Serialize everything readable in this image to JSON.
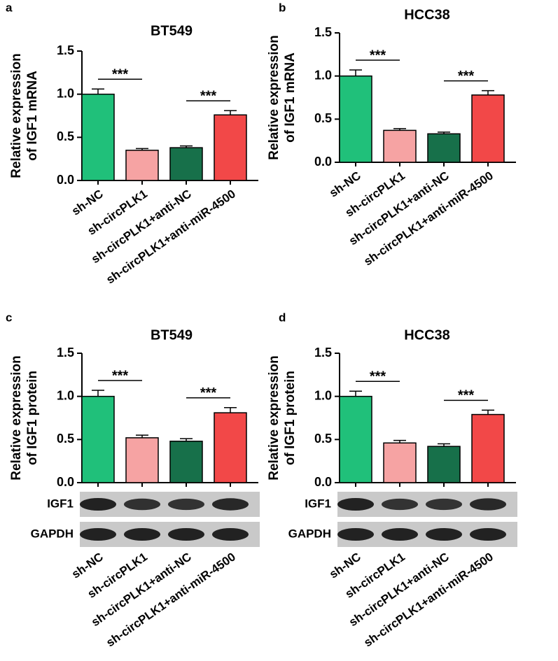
{
  "chart_data": [
    {
      "type": "bar",
      "panel": "a",
      "title": "BT549",
      "ylabel": [
        "Relative expression",
        "of IGF1 mRNA"
      ],
      "categories": [
        "sh-NC",
        "sh-circPLK1",
        "sh-circPLK1+anti-NC",
        "sh-circPLK1+anti-miR-4500"
      ],
      "values": [
        1.0,
        0.35,
        0.38,
        0.76
      ],
      "errors": [
        0.06,
        0.02,
        0.02,
        0.05
      ],
      "colors": [
        "#20c07a",
        "#f6a3a3",
        "#17704a",
        "#f24848"
      ],
      "ylim": [
        0,
        1.5
      ],
      "yticks": [
        {
          "value": 0,
          "label": "0.0"
        },
        0.5,
        {
          "value": 1,
          "label": "1.0"
        },
        1.5
      ],
      "annotations": [
        "***",
        "***"
      ]
    },
    {
      "type": "bar",
      "panel": "b",
      "title": "HCC38",
      "ylabel": [
        "Relative expression",
        "of IGF1 mRNA"
      ],
      "categories": [
        "sh-NC",
        "sh-circPLK1",
        "sh-circPLK1+anti-NC",
        "sh-circPLK1+anti-miR-4500"
      ],
      "values": [
        1.0,
        0.37,
        0.33,
        0.78
      ],
      "errors": [
        0.07,
        0.02,
        0.02,
        0.05
      ],
      "colors": [
        "#20c07a",
        "#f6a3a3",
        "#17704a",
        "#f24848"
      ],
      "ylim": [
        0,
        1.5
      ],
      "yticks": [
        {
          "value": 0,
          "label": "0.0"
        },
        0.5,
        {
          "value": 1,
          "label": "1.0"
        },
        1.5
      ],
      "annotations": [
        "***",
        "***"
      ]
    },
    {
      "type": "bar",
      "panel": "c",
      "title": "BT549",
      "ylabel": [
        "Relative expression",
        "of IGF1 protein"
      ],
      "categories": [
        "sh-NC",
        "sh-circPLK1",
        "sh-circPLK1+anti-NC",
        "sh-circPLK1+anti-miR-4500"
      ],
      "values": [
        1.0,
        0.52,
        0.48,
        0.81
      ],
      "errors": [
        0.07,
        0.03,
        0.03,
        0.06
      ],
      "colors": [
        "#20c07a",
        "#f6a3a3",
        "#17704a",
        "#f24848"
      ],
      "ylim": [
        0,
        1.5
      ],
      "yticks": [
        {
          "value": 0,
          "label": "0.0"
        },
        0.5,
        {
          "value": 1,
          "label": "1.0"
        },
        1.5
      ],
      "annotations": [
        "***",
        "***"
      ],
      "blots": [
        "IGF1",
        "GAPDH"
      ]
    },
    {
      "type": "bar",
      "panel": "d",
      "title": "HCC38",
      "ylabel": [
        "Relative expression",
        "of IGF1 protein"
      ],
      "categories": [
        "sh-NC",
        "sh-circPLK1",
        "sh-circPLK1+anti-NC",
        "sh-circPLK1+anti-miR-4500"
      ],
      "values": [
        1.0,
        0.46,
        0.42,
        0.79
      ],
      "errors": [
        0.06,
        0.03,
        0.03,
        0.05
      ],
      "colors": [
        "#20c07a",
        "#f6a3a3",
        "#17704a",
        "#f24848"
      ],
      "ylim": [
        0,
        1.5
      ],
      "yticks": [
        {
          "value": 0,
          "label": "0.0"
        },
        0.5,
        {
          "value": 1,
          "label": "1.0"
        },
        1.5
      ],
      "annotations": [
        "***",
        "***"
      ],
      "blots": [
        "IGF1",
        "GAPDH"
      ]
    }
  ]
}
